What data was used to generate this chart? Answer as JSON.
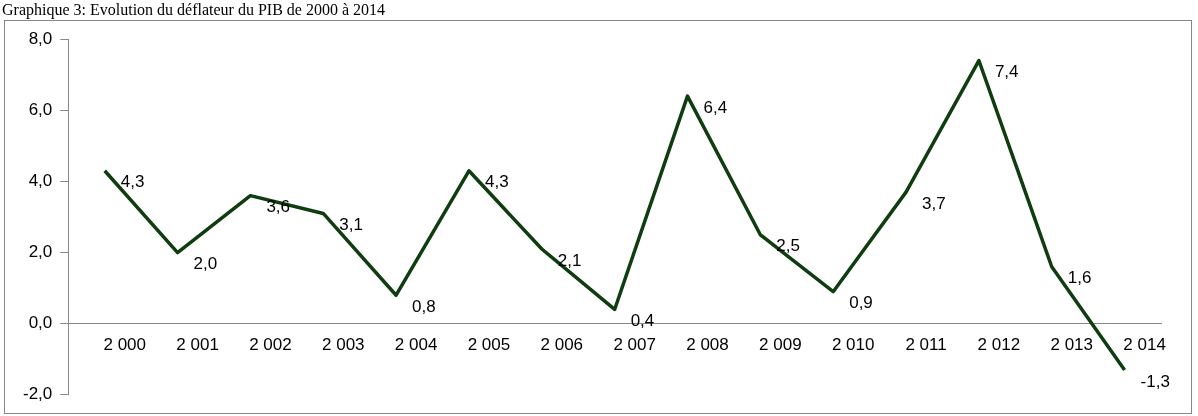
{
  "chart_data": {
    "type": "line",
    "title": "Graphique 3: Evolution du déflateur du PIB de 2000 à 2014",
    "categories": [
      "2 000",
      "2 001",
      "2 002",
      "2 003",
      "2 004",
      "2 005",
      "2 006",
      "2 007",
      "2 008",
      "2 009",
      "2 010",
      "2 011",
      "2 012",
      "2 013",
      "2 014"
    ],
    "series": [
      {
        "color": "#0f3d0f",
        "values": [
          4.3,
          2.0,
          3.6,
          3.1,
          0.8,
          4.3,
          2.1,
          0.4,
          6.4,
          2.5,
          0.9,
          3.7,
          7.4,
          1.6,
          -1.3
        ],
        "value_labels": [
          "4,3",
          "2,0",
          "3,6",
          "3,1",
          "0,8",
          "4,3",
          "2,1",
          "0,4",
          "6,4",
          "2,5",
          "0,9",
          "3,7",
          "7,4",
          "1,6",
          "-1,3"
        ]
      }
    ],
    "ylim": [
      -2,
      8
    ],
    "yticks": [
      {
        "value": -2,
        "label": "-2,0"
      },
      {
        "value": 0,
        "label": "0,0"
      },
      {
        "value": 2,
        "label": "2,0"
      },
      {
        "value": 4,
        "label": "4,0"
      },
      {
        "value": 6,
        "label": "6,0"
      },
      {
        "value": 8,
        "label": "8,0"
      }
    ],
    "grid": false,
    "legend": false,
    "marker": "none",
    "line_style": "solid"
  }
}
